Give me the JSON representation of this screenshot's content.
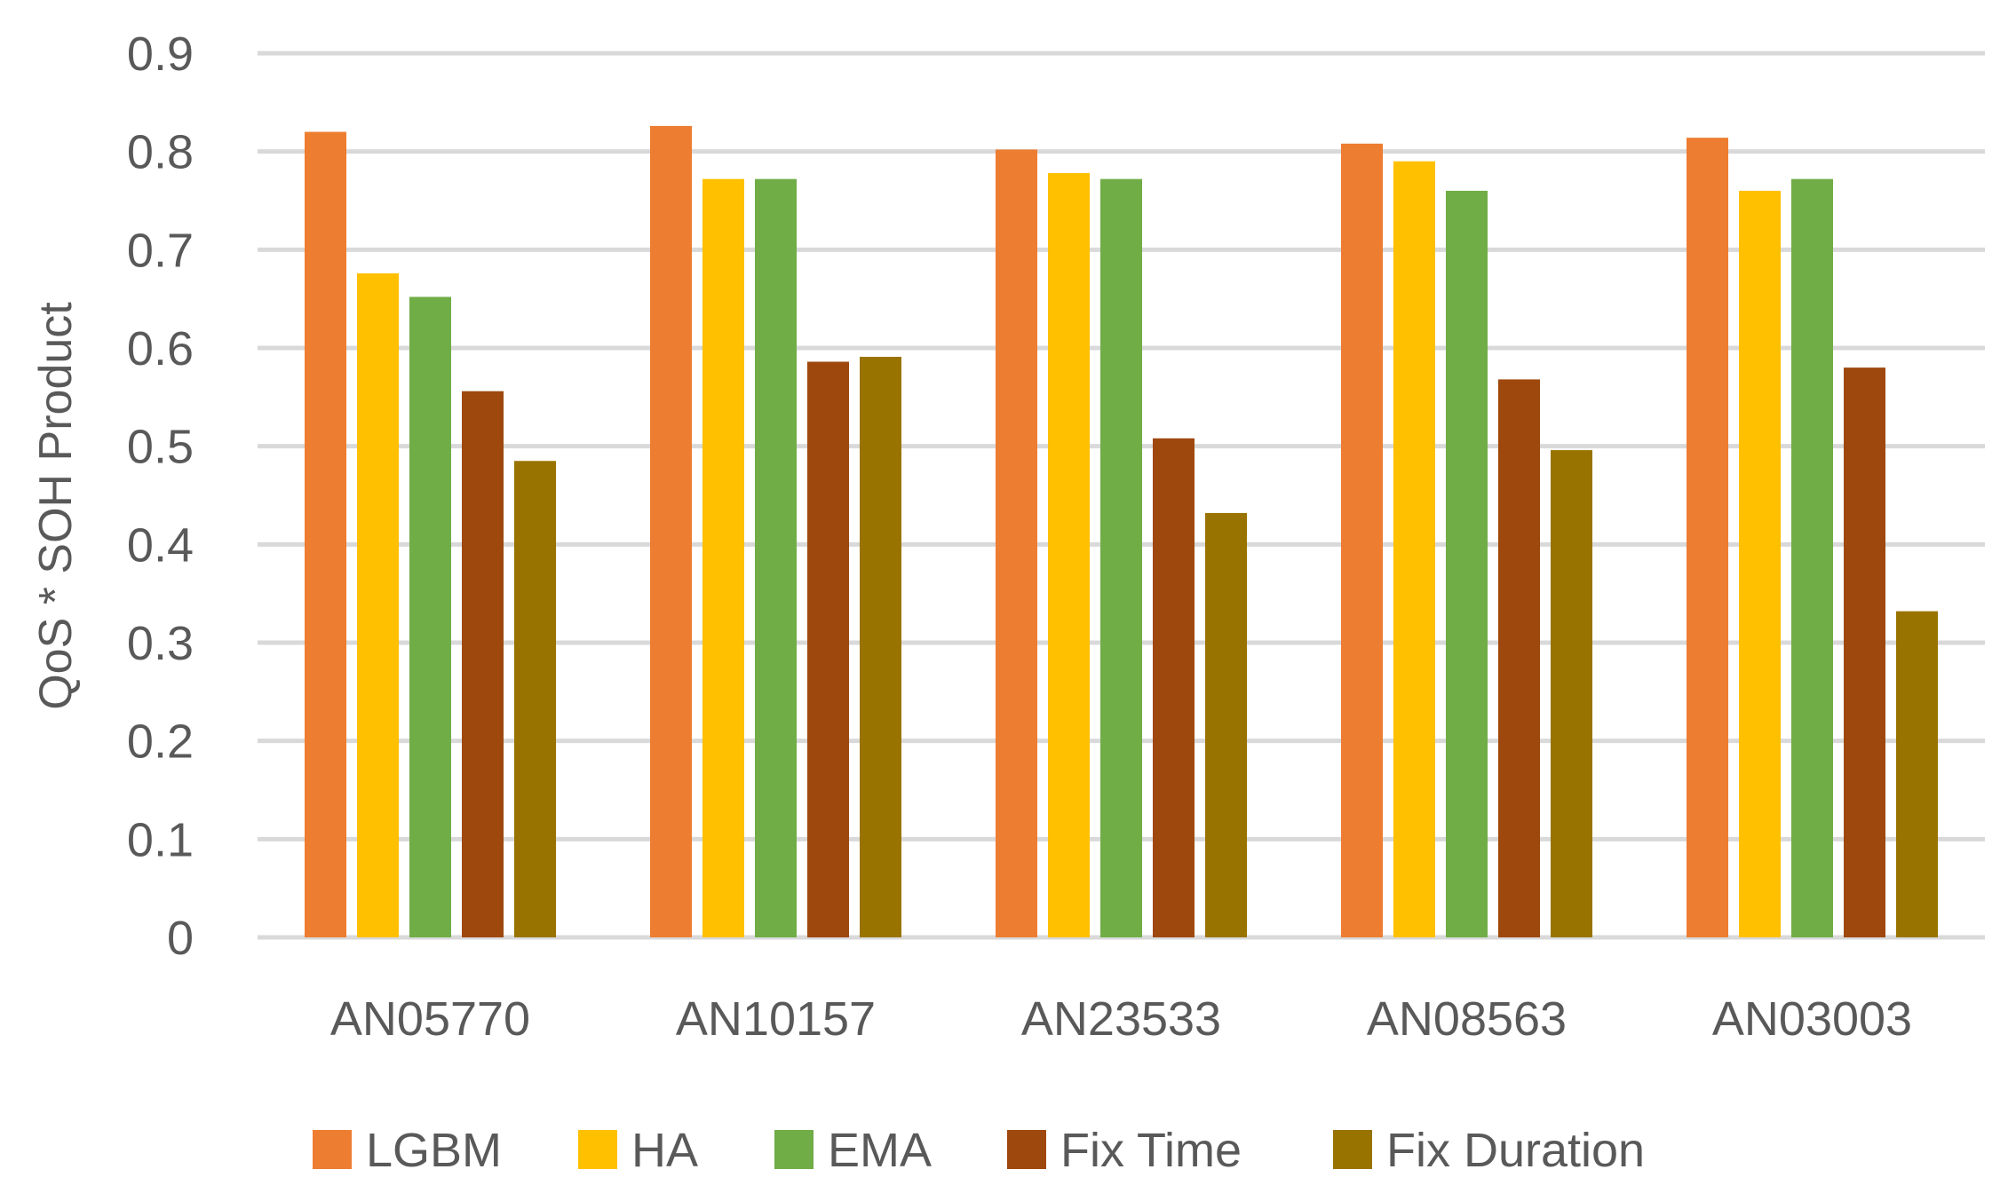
{
  "chart_data": {
    "type": "bar",
    "title": "",
    "xlabel": "",
    "ylabel": "QoS * SOH Product",
    "ylim": [
      0,
      0.9
    ],
    "yticks": [
      "0",
      "0.1",
      "0.2",
      "0.3",
      "0.4",
      "0.5",
      "0.6",
      "0.7",
      "0.8",
      "0.9"
    ],
    "grid": true,
    "legend_position": "bottom",
    "categories": [
      "AN05770",
      "AN10157",
      "AN23533",
      "AN08563",
      "AN03003"
    ],
    "series": [
      {
        "name": "LGBM",
        "color": "#ed7d31",
        "values": [
          0.82,
          0.826,
          0.802,
          0.808,
          0.814
        ]
      },
      {
        "name": "HA",
        "color": "#ffc000",
        "values": [
          0.676,
          0.772,
          0.778,
          0.79,
          0.76
        ]
      },
      {
        "name": "EMA",
        "color": "#70ad47",
        "values": [
          0.652,
          0.772,
          0.772,
          0.76,
          0.772
        ]
      },
      {
        "name": "Fix Time",
        "color": "#9e480e",
        "values": [
          0.556,
          0.586,
          0.508,
          0.568,
          0.58
        ]
      },
      {
        "name": "Fix Duration",
        "color": "#997300",
        "values": [
          0.485,
          0.591,
          0.432,
          0.496,
          0.332
        ]
      }
    ]
  }
}
